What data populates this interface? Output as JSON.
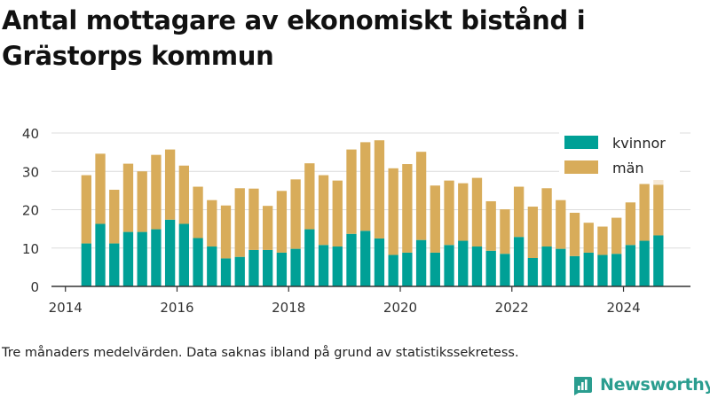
{
  "title": "Antal mottagare av ekonomiskt bistånd i Grästorps kommun",
  "caption": "Tre månaders medelvärden. Data saknas ibland på grund av statistikssekretess.",
  "brand": {
    "name": "Newsworthy",
    "icon": "bar-chart-logo-icon",
    "color": "#2a9d8f"
  },
  "colors": {
    "kvinnor": "#00a096",
    "man": "#d8ac5a",
    "man_faded": "#f6e9d6",
    "grid": "#dcdcdc",
    "axis": "#333333",
    "text": "#333333"
  },
  "chart_data": {
    "type": "bar",
    "stacked": true,
    "title": "Antal mottagare av ekonomiskt bistånd i Grästorps kommun",
    "xlabel": "",
    "ylabel": "",
    "ylim": [
      0,
      40
    ],
    "yticks": [
      0,
      10,
      20,
      30,
      40
    ],
    "xlim": [
      2013.75,
      2025.2
    ],
    "xticks": [
      "2014",
      "2016",
      "2018",
      "2020",
      "2022",
      "2024"
    ],
    "grid": true,
    "legend_position": "top-right",
    "x": [
      2014.375,
      2014.625,
      2014.875,
      2015.125,
      2015.375,
      2015.625,
      2015.875,
      2016.125,
      2016.375,
      2016.625,
      2016.875,
      2017.125,
      2017.375,
      2017.625,
      2017.875,
      2018.125,
      2018.375,
      2018.625,
      2018.875,
      2019.125,
      2019.375,
      2019.625,
      2019.875,
      2020.125,
      2020.375,
      2020.625,
      2020.875,
      2021.125,
      2021.375,
      2021.625,
      2021.875,
      2022.125,
      2022.375,
      2022.625,
      2022.875,
      2023.125,
      2023.375,
      2023.625,
      2023.875,
      2024.125,
      2024.375,
      2024.625
    ],
    "series": [
      {
        "name": "kvinnor",
        "values": [
          11.2,
          16.3,
          11.2,
          14.2,
          14.2,
          14.9,
          17.4,
          16.3,
          12.6,
          10.4,
          7.3,
          7.7,
          9.5,
          9.5,
          8.8,
          9.8,
          14.9,
          10.8,
          10.4,
          13.7,
          14.5,
          12.5,
          8.2,
          8.8,
          12.1,
          8.8,
          10.8,
          11.9,
          10.4,
          9.3,
          8.5,
          12.9,
          7.4,
          10.4,
          9.8,
          7.9,
          8.8,
          8.2,
          8.5,
          10.8,
          11.9,
          13.3
        ]
      },
      {
        "name": "män",
        "values": [
          17.8,
          18.3,
          14.0,
          17.8,
          15.8,
          19.4,
          18.3,
          15.2,
          13.4,
          12.1,
          13.8,
          17.9,
          16.0,
          11.5,
          16.1,
          18.1,
          17.2,
          18.2,
          17.2,
          22.0,
          23.1,
          25.6,
          22.6,
          23.1,
          23.0,
          17.5,
          16.8,
          15.0,
          17.9,
          12.9,
          11.6,
          13.1,
          13.4,
          15.2,
          12.7,
          11.3,
          7.8,
          7.4,
          9.4,
          11.1,
          14.8,
          13.2
        ]
      }
    ],
    "faded_extension": {
      "x": 2024.625,
      "man_top": 29.6
    }
  }
}
